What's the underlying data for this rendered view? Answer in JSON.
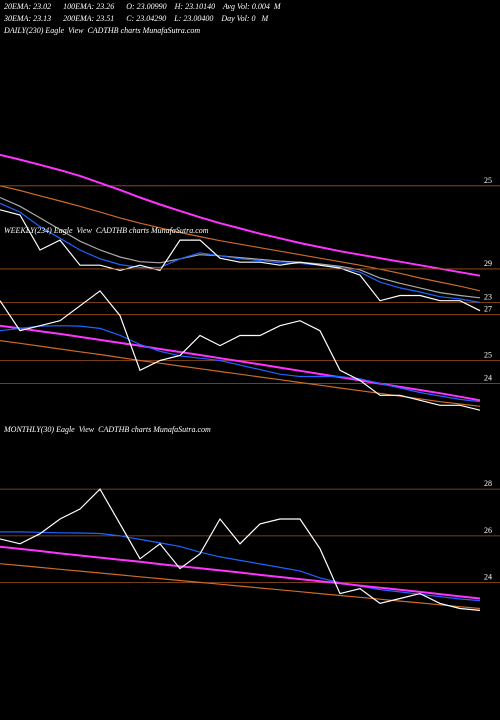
{
  "header": {
    "lines": [
      "20EMA: 23.02      100EMA: 23.26      O: 23.00990    H: 23.10140    Avg Vol: 0.004  M",
      "30EMA: 23.13      200EMA: 23.51      C: 23.04290    L: 23.00400    Day Vol: 0   M"
    ]
  },
  "chart_data": [
    {
      "type": "line",
      "title": "DAILY(230) Eagle  View  CADTHB charts MunafaSutra.com",
      "ylim": [
        22.7,
        27.5
      ],
      "yticks": [
        25,
        23
      ],
      "series": [
        {
          "color": "#cc6a2a",
          "values": [
            25.0,
            24.92,
            24.83,
            24.74,
            24.65,
            24.55,
            24.45,
            24.36,
            24.28,
            24.2,
            24.13,
            24.06,
            24.0,
            23.94,
            23.88,
            23.82,
            23.76,
            23.7,
            23.64,
            23.57,
            23.5,
            23.42,
            23.35,
            23.28,
            23.2
          ]
        },
        {
          "color": "#aaaaaa",
          "values": [
            24.8,
            24.65,
            24.45,
            24.25,
            24.05,
            23.9,
            23.78,
            23.7,
            23.68,
            23.75,
            23.82,
            23.8,
            23.77,
            23.74,
            23.71,
            23.69,
            23.66,
            23.62,
            23.56,
            23.42,
            23.33,
            23.25,
            23.17,
            23.12,
            23.08
          ]
        },
        {
          "color": "#ff33ff",
          "values": [
            25.53,
            25.45,
            25.36,
            25.27,
            25.17,
            25.05,
            24.93,
            24.8,
            24.68,
            24.57,
            24.46,
            24.36,
            24.27,
            24.18,
            24.1,
            24.02,
            23.95,
            23.88,
            23.82,
            23.76,
            23.7,
            23.64,
            23.58,
            23.52,
            23.46
          ]
        },
        {
          "color": "#1e64ff",
          "values": [
            24.7,
            24.55,
            24.3,
            24.1,
            23.9,
            23.75,
            23.65,
            23.6,
            23.6,
            23.75,
            23.85,
            23.8,
            23.75,
            23.72,
            23.68,
            23.67,
            23.64,
            23.6,
            23.52,
            23.35,
            23.25,
            23.18,
            23.1,
            23.06,
            23.0
          ]
        },
        {
          "color": "#ffffff",
          "values": [
            24.59,
            24.5,
            23.9,
            24.07,
            23.64,
            23.64,
            23.55,
            23.64,
            23.55,
            24.07,
            24.07,
            23.76,
            23.69,
            23.69,
            23.64,
            23.69,
            23.64,
            23.59,
            23.47,
            23.03,
            23.12,
            23.12,
            23.03,
            23.03,
            22.86
          ]
        }
      ]
    },
    {
      "type": "line",
      "title": "WEEKLY(234) Eagle  View  CADTHB charts MunafaSutra.com",
      "ylim": [
        22.4,
        30.7
      ],
      "yticks": [
        29,
        27,
        25,
        24
      ],
      "series": [
        {
          "color": "#cc6a2a",
          "values": [
            25.87,
            25.75,
            25.63,
            25.5,
            25.38,
            25.26,
            25.13,
            25.0,
            24.88,
            24.76,
            24.64,
            24.52,
            24.4,
            24.28,
            24.16,
            24.04,
            23.92,
            23.8,
            23.68,
            23.56,
            23.44,
            23.32,
            23.2,
            23.1,
            23.0
          ]
        },
        {
          "color": "#ff33ff",
          "values": [
            26.52,
            26.4,
            26.28,
            26.16,
            26.03,
            25.9,
            25.77,
            25.64,
            25.5,
            25.37,
            25.24,
            25.1,
            24.97,
            24.83,
            24.69,
            24.55,
            24.41,
            24.27,
            24.13,
            23.99,
            23.85,
            23.71,
            23.57,
            23.42,
            23.26
          ]
        },
        {
          "color": "#1e64ff",
          "values": [
            26.3,
            26.4,
            26.5,
            26.52,
            26.5,
            26.4,
            26.1,
            25.7,
            25.4,
            25.2,
            25.1,
            25.0,
            24.8,
            24.6,
            24.4,
            24.3,
            24.3,
            24.3,
            24.2,
            24.0,
            23.8,
            23.6,
            23.45,
            23.3,
            23.2
          ]
        },
        {
          "color": "#ffffff",
          "values": [
            27.61,
            26.3,
            26.52,
            26.74,
            27.39,
            28.04,
            26.96,
            24.57,
            25.0,
            25.22,
            26.09,
            25.65,
            26.09,
            26.09,
            26.52,
            26.74,
            26.3,
            24.57,
            24.13,
            23.48,
            23.48,
            23.26,
            23.04,
            23.04,
            22.83
          ]
        }
      ]
    },
    {
      "type": "line",
      "title": "MONTHLY(30) Eagle  View  CADTHB charts MunafaSutra.com",
      "ylim": [
        22.4,
        30.1
      ],
      "yticks": [
        28,
        26,
        24
      ],
      "series": [
        {
          "color": "#cc6a2a",
          "values": [
            24.81,
            24.73,
            24.65,
            24.57,
            24.49,
            24.41,
            24.33,
            24.25,
            24.17,
            24.09,
            24.01,
            23.93,
            23.85,
            23.77,
            23.69,
            23.61,
            23.53,
            23.45,
            23.37,
            23.29,
            23.21,
            23.13,
            23.05,
            22.97,
            22.89
          ]
        },
        {
          "color": "#1e64ff",
          "values": [
            26.17,
            26.17,
            26.15,
            26.13,
            26.12,
            26.1,
            26.0,
            25.85,
            25.7,
            25.55,
            25.3,
            25.1,
            24.95,
            24.8,
            24.65,
            24.5,
            24.2,
            24.0,
            23.85,
            23.7,
            23.6,
            23.5,
            23.4,
            23.3,
            23.23
          ]
        },
        {
          "color": "#ff33ff",
          "values": [
            25.53,
            25.44,
            25.35,
            25.25,
            25.16,
            25.07,
            24.98,
            24.89,
            24.79,
            24.7,
            24.61,
            24.52,
            24.43,
            24.33,
            24.24,
            24.15,
            24.06,
            23.97,
            23.87,
            23.78,
            23.69,
            23.6,
            23.51,
            23.41,
            23.32
          ]
        },
        {
          "color": "#ffffff",
          "values": [
            25.87,
            25.66,
            26.09,
            26.72,
            27.15,
            28.0,
            26.51,
            25.02,
            25.66,
            24.6,
            25.23,
            26.72,
            25.66,
            26.51,
            26.72,
            26.72,
            25.45,
            23.53,
            23.74,
            23.11,
            23.32,
            23.53,
            23.11,
            22.89,
            22.81
          ]
        }
      ]
    }
  ]
}
